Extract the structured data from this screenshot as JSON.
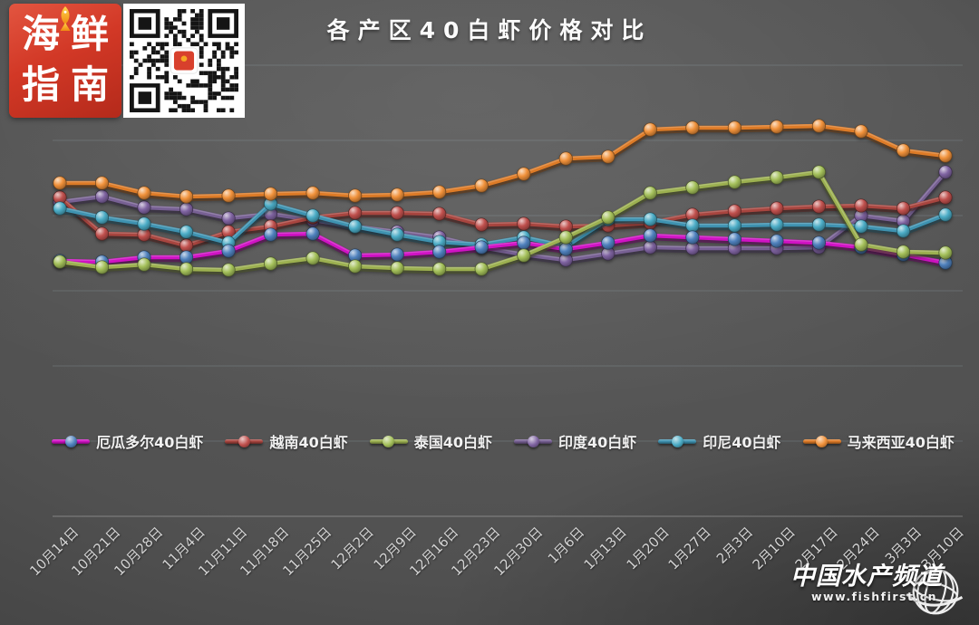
{
  "title": "各产区40白虾价格对比",
  "header": {
    "logo_text": "海鲜指南",
    "logo_fish_icon": "fish-icon",
    "qr_code": "qr-code"
  },
  "watermark": {
    "title": "中国水产频道",
    "url": "www.fishfirst.cn"
  },
  "chart_data": {
    "type": "line",
    "title": "各产区40白虾价格对比",
    "x_categories": [
      "10月14日",
      "10月21日",
      "10月28日",
      "11月4日",
      "11月11日",
      "11月18日",
      "11月25日",
      "12月2日",
      "12月9日",
      "12月16日",
      "12月23日",
      "12月30日",
      "1月6日",
      "1月13日",
      "1月20日",
      "1月27日",
      "2月3日",
      "2月10日",
      "2月17日",
      "2月24日",
      "3月3日",
      "3月10日"
    ],
    "y_axis": {
      "tick_labels_visible": false,
      "unit": "relative price level (no axis values shown in image; values estimated from plot positions)",
      "range": [
        260,
        450
      ]
    },
    "grid": true,
    "legend_position": "bottom",
    "series": [
      {
        "name": "厄瓜多尔40白虾",
        "line_color": "#d012c4",
        "marker_color": "#4f81bd",
        "values": [
          282,
          281,
          286,
          286,
          293,
          311,
          312,
          288,
          289,
          292,
          297,
          302,
          295,
          302,
          310,
          308,
          306,
          304,
          302,
          297,
          289,
          280
        ]
      },
      {
        "name": "越南40白虾",
        "line_color": "#a8453f",
        "marker_color": "#c0504d",
        "values": [
          352,
          312,
          311,
          299,
          314,
          320,
          330,
          335,
          335,
          334,
          322,
          323,
          320,
          321,
          324,
          333,
          337,
          340,
          342,
          343,
          340,
          352
        ]
      },
      {
        "name": "泰国40白虾",
        "line_color": "#9cb050",
        "marker_color": "#a4c05a",
        "values": [
          281,
          275,
          278,
          273,
          272,
          279,
          285,
          276,
          274,
          273,
          273,
          288,
          308,
          330,
          357,
          363,
          369,
          374,
          380,
          300,
          292,
          291
        ]
      },
      {
        "name": "印度40白虾",
        "line_color": "#776093",
        "marker_color": "#8064a2",
        "values": [
          347,
          353,
          341,
          339,
          329,
          334,
          327,
          320,
          314,
          308,
          297,
          289,
          283,
          290,
          297,
          296,
          296,
          296,
          297,
          332,
          326,
          380
        ]
      },
      {
        "name": "印尼40白虾",
        "line_color": "#3e92b0",
        "marker_color": "#4bacc6",
        "values": [
          340,
          330,
          323,
          314,
          302,
          345,
          332,
          320,
          311,
          303,
          300,
          308,
          298,
          328,
          328,
          321,
          321,
          322,
          322,
          320,
          315,
          333
        ]
      },
      {
        "name": "马来西亚40白虾",
        "line_color": "#dd7b27",
        "marker_color": "#f0913a",
        "values": [
          368,
          368,
          357,
          353,
          354,
          356,
          357,
          354,
          355,
          358,
          365,
          378,
          395,
          397,
          427,
          429,
          429,
          430,
          431,
          425,
          404,
          398
        ]
      }
    ]
  }
}
